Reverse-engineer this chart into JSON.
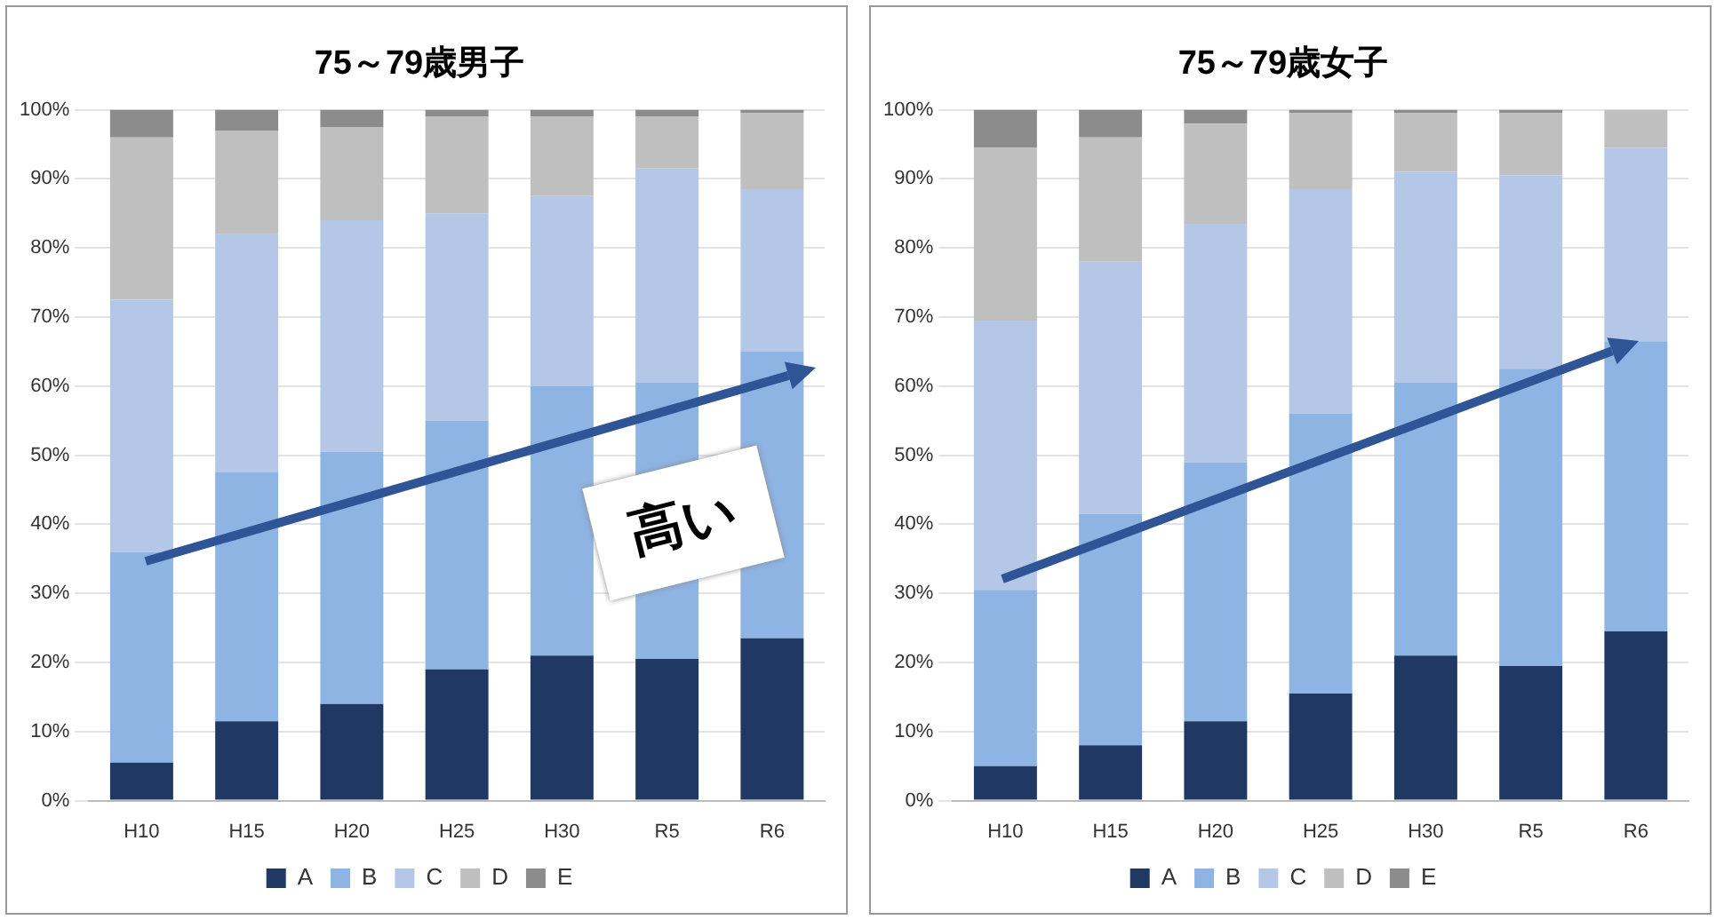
{
  "chart_data": [
    {
      "type": "bar",
      "title": "75～79歳男子",
      "categories": [
        "H10",
        "H15",
        "H20",
        "H25",
        "H30",
        "R5",
        "R6"
      ],
      "stacked": true,
      "series": [
        {
          "name": "A",
          "color": "#1f3864",
          "values": [
            5.5,
            11.5,
            14,
            19,
            21,
            20.5,
            23.5
          ]
        },
        {
          "name": "B",
          "color": "#8eb4e3",
          "values": [
            30.5,
            36,
            36.5,
            36,
            39,
            40,
            41.5
          ]
        },
        {
          "name": "C",
          "color": "#b4c7e7",
          "values": [
            36.5,
            34.5,
            33.5,
            30,
            27.5,
            31,
            23.5
          ]
        },
        {
          "name": "D",
          "color": "#bfbfbf",
          "values": [
            23.5,
            15,
            13.5,
            14,
            11.5,
            7.5,
            11
          ]
        },
        {
          "name": "E",
          "color": "#8c8c8c",
          "values": [
            4,
            3,
            2.5,
            1,
            1,
            1,
            0.5
          ]
        }
      ],
      "ylim": [
        0,
        100
      ],
      "yticks": [
        {
          "value": 0,
          "label": "0%"
        },
        {
          "value": 10,
          "label": "10%"
        },
        {
          "value": 20,
          "label": "20%"
        },
        {
          "value": 30,
          "label": "30%"
        },
        {
          "value": 40,
          "label": "40%"
        },
        {
          "value": 50,
          "label": "50%"
        },
        {
          "value": 60,
          "label": "60%"
        },
        {
          "value": 70,
          "label": "70%"
        },
        {
          "value": 80,
          "label": "80%"
        },
        {
          "value": 90,
          "label": "90%"
        },
        {
          "value": 100,
          "label": "100%"
        }
      ],
      "grid": "y",
      "legend": "bottom",
      "annotations": [
        "高い"
      ]
    },
    {
      "type": "bar",
      "title": "75～79歳女子",
      "categories": [
        "H10",
        "H15",
        "H20",
        "H25",
        "H30",
        "R5",
        "R6"
      ],
      "stacked": true,
      "series": [
        {
          "name": "A",
          "color": "#1f3864",
          "values": [
            5,
            8,
            11.5,
            15.5,
            21,
            19.5,
            24.5
          ]
        },
        {
          "name": "B",
          "color": "#8eb4e3",
          "values": [
            25.5,
            33.5,
            37.5,
            40.5,
            39.5,
            43,
            42
          ]
        },
        {
          "name": "C",
          "color": "#b4c7e7",
          "values": [
            39,
            36.5,
            34.5,
            32.5,
            30.5,
            28,
            28
          ]
        },
        {
          "name": "D",
          "color": "#bfbfbf",
          "values": [
            25,
            18,
            14.5,
            11,
            8.5,
            9,
            5.5
          ]
        },
        {
          "name": "E",
          "color": "#8c8c8c",
          "values": [
            5.5,
            4,
            2,
            0.5,
            0.5,
            0.5,
            0
          ]
        }
      ],
      "ylim": [
        0,
        100
      ],
      "yticks": [
        {
          "value": 0,
          "label": "0%"
        },
        {
          "value": 10,
          "label": "10%"
        },
        {
          "value": 20,
          "label": "20%"
        },
        {
          "value": 30,
          "label": "30%"
        },
        {
          "value": 40,
          "label": "40%"
        },
        {
          "value": 50,
          "label": "50%"
        },
        {
          "value": 60,
          "label": "60%"
        },
        {
          "value": 70,
          "label": "70%"
        },
        {
          "value": 80,
          "label": "80%"
        },
        {
          "value": 90,
          "label": "90%"
        },
        {
          "value": 100,
          "label": "100%"
        }
      ],
      "grid": "y",
      "legend": "bottom"
    }
  ]
}
